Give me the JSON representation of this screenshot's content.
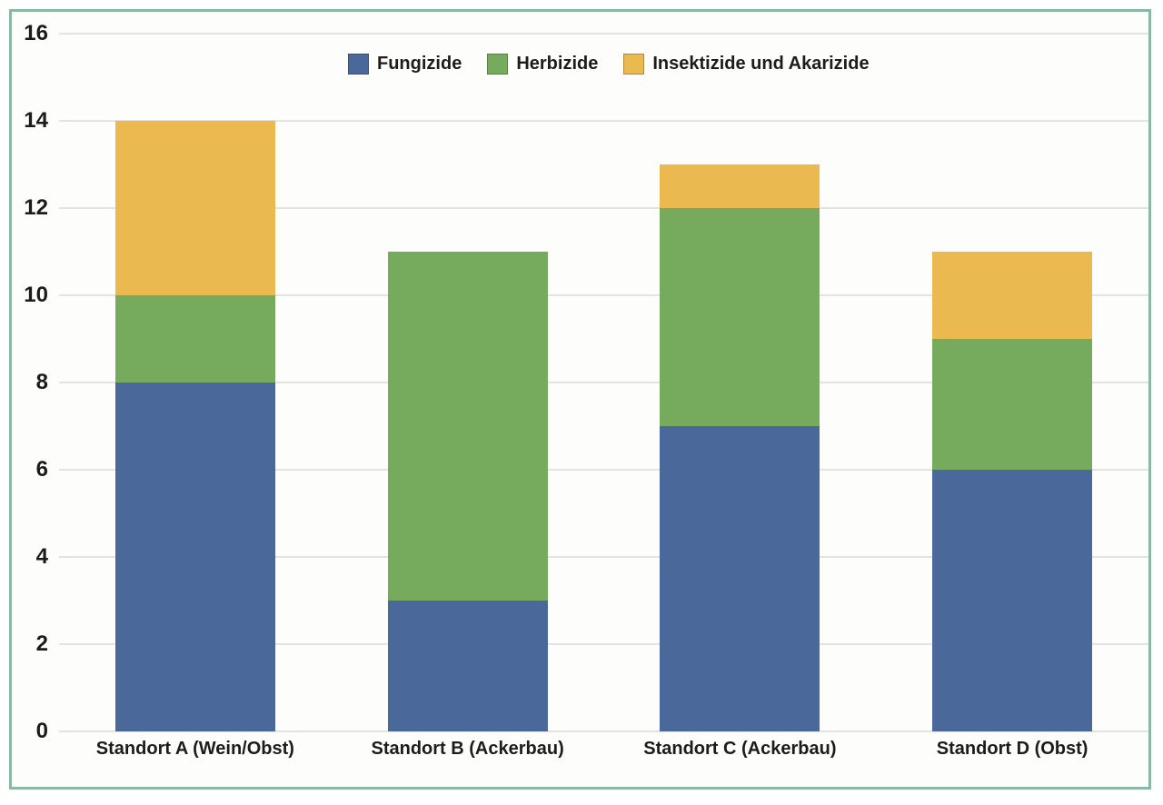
{
  "chart_data": {
    "type": "bar",
    "stacked": true,
    "title": "",
    "xlabel": "",
    "ylabel": "",
    "categories": [
      "Standort A (Wein/Obst)",
      "Standort B (Ackerbau)",
      "Standort C (Ackerbau)",
      "Standort D (Obst)"
    ],
    "series": [
      {
        "name": "Fungizide",
        "color": "#4b689b",
        "values": [
          8,
          3,
          7,
          6
        ]
      },
      {
        "name": "Herbizide",
        "color": "#76ab5e",
        "values": [
          2,
          8,
          5,
          3
        ]
      },
      {
        "name": "Insektizide und Akarizide",
        "color": "#eab950",
        "values": [
          4,
          0,
          1,
          2
        ]
      }
    ],
    "totals": [
      14,
      11,
      13,
      11
    ],
    "ylim": [
      0,
      16
    ],
    "ytick_step": 2,
    "ytick_labels": [
      "0",
      "2",
      "4",
      "6",
      "8",
      "10",
      "12",
      "14",
      "16"
    ],
    "grid": true,
    "legend_position": "top"
  },
  "colors": {
    "frame_border": "#8ab9a3",
    "panel_background": "#fdfdfb",
    "gridline": "#e3e3e3",
    "text": "#1c1c1c"
  }
}
